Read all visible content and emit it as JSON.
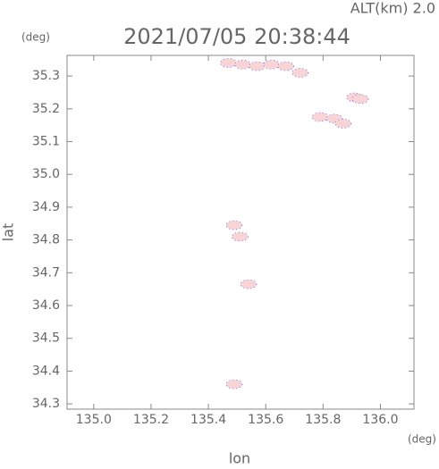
{
  "chart_data": {
    "type": "scatter",
    "title": "2021/07/05 20:38:44",
    "annotation": "ALT(km) 2.0",
    "y_unit": "(deg)",
    "x_unit": "(deg)",
    "xlabel": "lon",
    "ylabel": "lat",
    "x": [
      135.47,
      135.52,
      135.57,
      135.62,
      135.67,
      135.72,
      135.91,
      135.93,
      135.79,
      135.84,
      135.87,
      135.49,
      135.51,
      135.54,
      135.49
    ],
    "y": [
      35.34,
      35.335,
      35.33,
      35.335,
      35.33,
      35.31,
      35.235,
      35.23,
      35.175,
      35.17,
      35.155,
      34.845,
      34.81,
      34.665,
      34.36
    ],
    "color": "#f8d4d4",
    "edge_color": "#3b3bff",
    "xlim": [
      134.907,
      136.117
    ],
    "ylim": [
      34.284,
      35.363
    ],
    "xticks": [
      {
        "value": 135,
        "label": "135.0"
      },
      135.2,
      135.4,
      135.6,
      135.8,
      {
        "value": 136,
        "label": "136.0"
      }
    ],
    "yticks": [
      34.3,
      34.4,
      34.5,
      34.6,
      34.7,
      34.8,
      34.9,
      {
        "value": 35,
        "label": "35.0"
      },
      35.1,
      35.2,
      35.3
    ]
  }
}
